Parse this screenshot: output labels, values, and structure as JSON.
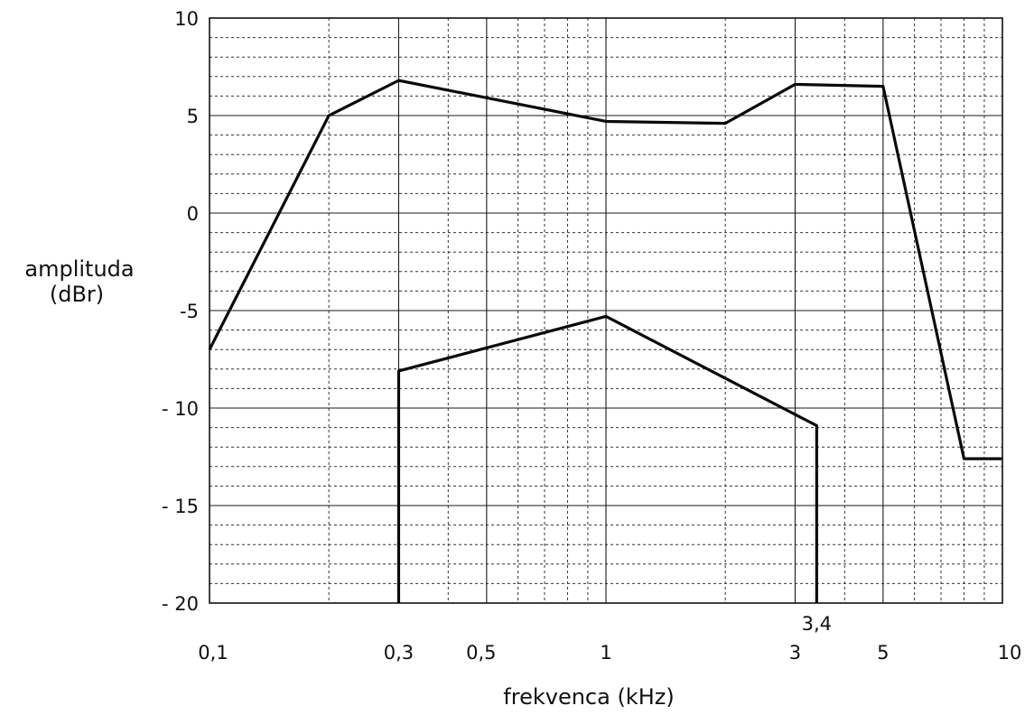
{
  "chart_data": {
    "type": "line",
    "xlabel": "frekvenca (kHz)",
    "ylabel_line1": "amplituda",
    "ylabel_line2": "(dBr)",
    "x_scale": "log",
    "xlim": [
      0.1,
      10
    ],
    "ylim": [
      -20,
      10
    ],
    "grid": true,
    "x_tick_labels": [
      {
        "value": 0.1,
        "label": "0,1"
      },
      {
        "value": 0.3,
        "label": "0,3"
      },
      {
        "value": 0.5,
        "label": "0,5"
      },
      {
        "value": 1,
        "label": "1"
      },
      {
        "value": 3,
        "label": "3"
      },
      {
        "value": 3.4,
        "label": "3,4"
      },
      {
        "value": 5,
        "label": "5"
      },
      {
        "value": 10,
        "label": "10"
      }
    ],
    "y_tick_labels": [
      {
        "value": 10,
        "label": "10"
      },
      {
        "value": 5,
        "label": "5"
      },
      {
        "value": 0,
        "label": "0"
      },
      {
        "value": -5,
        "label": "-5"
      },
      {
        "value": -10,
        "label": "- 10"
      },
      {
        "value": -15,
        "label": "- 15"
      },
      {
        "value": -20,
        "label": "- 20"
      }
    ],
    "series": [
      {
        "x": [
          0.1,
          0.2,
          0.3,
          1,
          2,
          3,
          5,
          8,
          10
        ],
        "y": [
          -7,
          5,
          6.8,
          4.7,
          4.6,
          6.6,
          6.5,
          -12.6,
          -12.6
        ]
      },
      {
        "x": [
          0.3,
          0.3,
          1,
          3.4,
          3.4
        ],
        "y": [
          -20,
          -8.1,
          -5.3,
          -10.9,
          -20
        ]
      }
    ]
  }
}
